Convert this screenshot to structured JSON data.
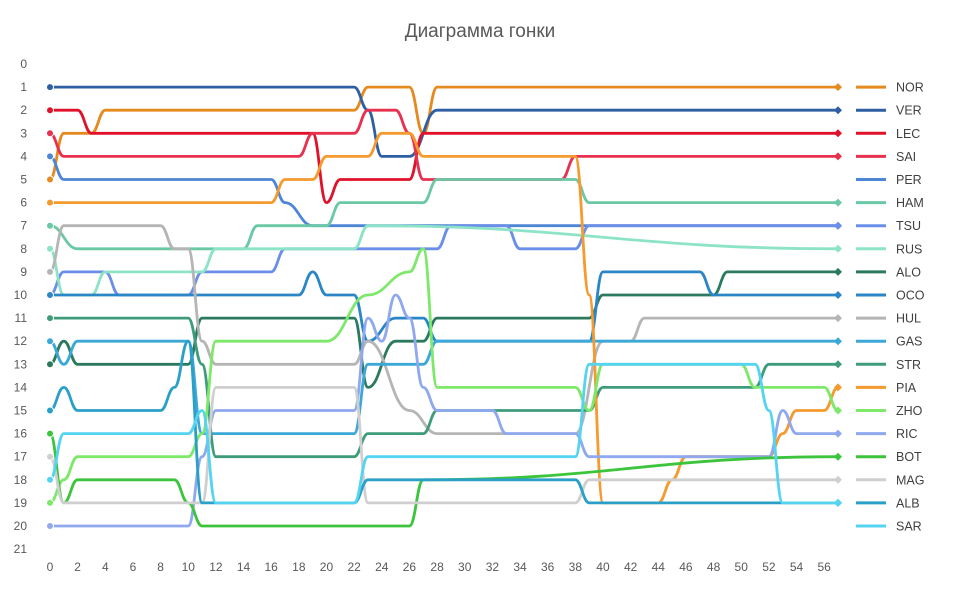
{
  "chart_data": {
    "type": "line",
    "title": "Диаграмма гонки",
    "xlabel": "",
    "ylabel": "",
    "x_ticks": [
      "0",
      "2",
      "4",
      "6",
      "8",
      "10",
      "12",
      "14",
      "16",
      "18",
      "20",
      "22",
      "24",
      "26",
      "28",
      "30",
      "32",
      "34",
      "36",
      "38",
      "40",
      "42",
      "44",
      "46",
      "48",
      "50",
      "52",
      "54",
      "56"
    ],
    "y_ticks": [
      "0",
      "1",
      "2",
      "3",
      "4",
      "5",
      "6",
      "7",
      "8",
      "9",
      "10",
      "11",
      "12",
      "13",
      "14",
      "15",
      "16",
      "17",
      "18",
      "19",
      "20",
      "21"
    ],
    "xlim": [
      0,
      57
    ],
    "ylim": [
      0,
      21
    ],
    "y_inverted": true,
    "grid": false,
    "legend_position": "right",
    "series": [
      {
        "name": "NOR",
        "color": "#E58A1F",
        "points": [
          [
            0,
            5
          ],
          [
            1,
            3
          ],
          [
            3,
            3
          ],
          [
            4,
            2
          ],
          [
            22,
            2
          ],
          [
            23,
            1
          ],
          [
            26,
            1
          ],
          [
            27,
            3
          ],
          [
            28,
            1
          ],
          [
            57,
            1
          ]
        ]
      },
      {
        "name": "VER",
        "color": "#2E5FA3",
        "points": [
          [
            0,
            1
          ],
          [
            22,
            1
          ],
          [
            23,
            2
          ],
          [
            24,
            4
          ],
          [
            26,
            4
          ],
          [
            28,
            2
          ],
          [
            57,
            2
          ]
        ]
      },
      {
        "name": "LEC",
        "color": "#E0122B",
        "points": [
          [
            0,
            2
          ],
          [
            2,
            2
          ],
          [
            3,
            3
          ],
          [
            19,
            3
          ],
          [
            20,
            6
          ],
          [
            21,
            5
          ],
          [
            26,
            5
          ],
          [
            27,
            3
          ],
          [
            57,
            3
          ]
        ]
      },
      {
        "name": "SAI",
        "color": "#E8304F",
        "points": [
          [
            0,
            3
          ],
          [
            1,
            4
          ],
          [
            18,
            4
          ],
          [
            19,
            3
          ],
          [
            22,
            3
          ],
          [
            23,
            2
          ],
          [
            25,
            2
          ],
          [
            26,
            3
          ],
          [
            27,
            5
          ],
          [
            37,
            5
          ],
          [
            38,
            4
          ],
          [
            57,
            4
          ]
        ]
      },
      {
        "name": "PER",
        "color": "#4E86D6",
        "points": [
          [
            0,
            4
          ],
          [
            1,
            5
          ],
          [
            16,
            5
          ],
          [
            17,
            6
          ],
          [
            19,
            7
          ],
          [
            57,
            7
          ]
        ]
      },
      {
        "name": "HAM",
        "color": "#6AC8A4",
        "points": [
          [
            0,
            7
          ],
          [
            2,
            8
          ],
          [
            14,
            8
          ],
          [
            15,
            7
          ],
          [
            20,
            7
          ],
          [
            21,
            6
          ],
          [
            27,
            6
          ],
          [
            28,
            5
          ],
          [
            38,
            5
          ],
          [
            39,
            6
          ],
          [
            57,
            6
          ]
        ]
      },
      {
        "name": "TSU",
        "color": "#6B8FE8",
        "points": [
          [
            0,
            10
          ],
          [
            1,
            9
          ],
          [
            4,
            9
          ],
          [
            5,
            10
          ],
          [
            10,
            10
          ],
          [
            11,
            9
          ],
          [
            16,
            9
          ],
          [
            17,
            8
          ],
          [
            28,
            8
          ],
          [
            29,
            7
          ],
          [
            33,
            7
          ],
          [
            34,
            8
          ],
          [
            38,
            8
          ],
          [
            39,
            7
          ],
          [
            57,
            7
          ]
        ]
      },
      {
        "name": "RUS",
        "color": "#8CE3C8",
        "points": [
          [
            0,
            8
          ],
          [
            1,
            10
          ],
          [
            3,
            10
          ],
          [
            4,
            9
          ],
          [
            11,
            9
          ],
          [
            12,
            8
          ],
          [
            22,
            8
          ],
          [
            23,
            7
          ],
          [
            57,
            8
          ]
        ]
      },
      {
        "name": "ALO",
        "color": "#2B7A5E",
        "points": [
          [
            0,
            13
          ],
          [
            1,
            12
          ],
          [
            2,
            13
          ],
          [
            10,
            13
          ],
          [
            11,
            11
          ],
          [
            22,
            11
          ],
          [
            23,
            14
          ],
          [
            25,
            12
          ],
          [
            27,
            12
          ],
          [
            28,
            11
          ],
          [
            39,
            11
          ],
          [
            40,
            10
          ],
          [
            48,
            10
          ],
          [
            49,
            9
          ],
          [
            57,
            9
          ]
        ]
      },
      {
        "name": "OCO",
        "color": "#2A86C6",
        "points": [
          [
            0,
            10
          ],
          [
            12,
            10
          ],
          [
            18,
            10
          ],
          [
            19,
            9
          ],
          [
            20,
            10
          ],
          [
            22,
            10
          ],
          [
            23,
            12
          ],
          [
            25,
            11
          ],
          [
            27,
            11
          ],
          [
            28,
            12
          ],
          [
            39,
            12
          ],
          [
            40,
            9
          ],
          [
            47,
            9
          ],
          [
            48,
            10
          ],
          [
            57,
            10
          ]
        ]
      },
      {
        "name": "HUL",
        "color": "#B5B5B5",
        "points": [
          [
            0,
            9
          ],
          [
            1,
            7
          ],
          [
            8,
            7
          ],
          [
            9,
            8
          ],
          [
            10,
            8
          ],
          [
            11,
            12
          ],
          [
            12,
            13
          ],
          [
            22,
            13
          ],
          [
            23,
            12
          ],
          [
            26,
            15
          ],
          [
            28,
            16
          ],
          [
            38,
            16
          ],
          [
            40,
            12
          ],
          [
            42,
            12
          ],
          [
            43,
            11
          ],
          [
            57,
            11
          ]
        ]
      },
      {
        "name": "GAS",
        "color": "#3BA8D8",
        "points": [
          [
            0,
            12
          ],
          [
            1,
            13
          ],
          [
            2,
            12
          ],
          [
            10,
            12
          ],
          [
            11,
            16
          ],
          [
            22,
            16
          ],
          [
            23,
            13
          ],
          [
            27,
            13
          ],
          [
            28,
            12
          ],
          [
            57,
            12
          ]
        ]
      },
      {
        "name": "STR",
        "color": "#3F9C7A",
        "points": [
          [
            0,
            11
          ],
          [
            10,
            11
          ],
          [
            11,
            13
          ],
          [
            12,
            17
          ],
          [
            22,
            17
          ],
          [
            23,
            16
          ],
          [
            27,
            16
          ],
          [
            28,
            15
          ],
          [
            39,
            15
          ],
          [
            40,
            14
          ],
          [
            51,
            14
          ],
          [
            52,
            13
          ],
          [
            57,
            13
          ]
        ]
      },
      {
        "name": "PIA",
        "color": "#F59A2E",
        "points": [
          [
            0,
            6
          ],
          [
            1,
            6
          ],
          [
            16,
            6
          ],
          [
            17,
            5
          ],
          [
            19,
            5
          ],
          [
            20,
            4
          ],
          [
            23,
            4
          ],
          [
            24,
            3
          ],
          [
            26,
            3
          ],
          [
            27,
            4
          ],
          [
            38,
            4
          ],
          [
            39,
            10
          ],
          [
            40,
            19
          ],
          [
            42,
            19
          ],
          [
            44,
            19
          ],
          [
            45,
            18
          ],
          [
            46,
            17
          ],
          [
            52,
            17
          ],
          [
            53,
            16
          ],
          [
            54,
            15
          ],
          [
            56,
            15
          ],
          [
            57,
            14
          ]
        ]
      },
      {
        "name": "ZHO",
        "color": "#7DE86A",
        "points": [
          [
            0,
            19
          ],
          [
            1,
            18
          ],
          [
            2,
            17
          ],
          [
            10,
            17
          ],
          [
            11,
            16
          ],
          [
            12,
            12
          ],
          [
            20,
            12
          ],
          [
            23,
            10
          ],
          [
            26,
            9
          ],
          [
            27,
            8
          ],
          [
            28,
            14
          ],
          [
            38,
            14
          ],
          [
            39,
            15
          ],
          [
            40,
            13
          ],
          [
            50,
            13
          ],
          [
            51,
            14
          ],
          [
            56,
            14
          ],
          [
            57,
            15
          ]
        ]
      },
      {
        "name": "RIC",
        "color": "#8FA8EE",
        "points": [
          [
            0,
            20
          ],
          [
            10,
            20
          ],
          [
            11,
            17
          ],
          [
            12,
            15
          ],
          [
            22,
            15
          ],
          [
            23,
            11
          ],
          [
            24,
            12
          ],
          [
            25,
            10
          ],
          [
            26,
            11
          ],
          [
            27,
            14
          ],
          [
            28,
            15
          ],
          [
            32,
            15
          ],
          [
            33,
            16
          ],
          [
            38,
            16
          ],
          [
            39,
            17
          ],
          [
            52,
            17
          ],
          [
            53,
            15
          ],
          [
            54,
            16
          ],
          [
            57,
            16
          ]
        ]
      },
      {
        "name": "BOT",
        "color": "#3DC43D",
        "points": [
          [
            0,
            16
          ],
          [
            1,
            19
          ],
          [
            2,
            18
          ],
          [
            9,
            18
          ],
          [
            10,
            19
          ],
          [
            11,
            20
          ],
          [
            22,
            20
          ],
          [
            26,
            20
          ],
          [
            27,
            18
          ],
          [
            57,
            17
          ]
        ]
      },
      {
        "name": "MAG",
        "color": "#CFCFCF",
        "points": [
          [
            0,
            17
          ],
          [
            1,
            19
          ],
          [
            11,
            19
          ],
          [
            12,
            14
          ],
          [
            22,
            14
          ],
          [
            23,
            19
          ],
          [
            38,
            19
          ],
          [
            39,
            18
          ],
          [
            57,
            18
          ]
        ]
      },
      {
        "name": "ALB",
        "color": "#2AA0C8",
        "points": [
          [
            0,
            15
          ],
          [
            1,
            14
          ],
          [
            2,
            15
          ],
          [
            8,
            15
          ],
          [
            9,
            14
          ],
          [
            10,
            12
          ],
          [
            11,
            19
          ],
          [
            22,
            19
          ],
          [
            23,
            18
          ],
          [
            28,
            18
          ],
          [
            38,
            18
          ],
          [
            39,
            19
          ],
          [
            52,
            19
          ],
          [
            53,
            19
          ],
          [
            57,
            19
          ]
        ]
      },
      {
        "name": "SAR",
        "color": "#54D4F0",
        "points": [
          [
            0,
            18
          ],
          [
            1,
            16
          ],
          [
            10,
            16
          ],
          [
            11,
            15
          ],
          [
            12,
            19
          ],
          [
            22,
            19
          ],
          [
            23,
            17
          ],
          [
            38,
            17
          ],
          [
            39,
            13
          ],
          [
            51,
            13
          ],
          [
            52,
            15
          ],
          [
            53,
            19
          ],
          [
            57,
            19
          ]
        ]
      }
    ]
  }
}
